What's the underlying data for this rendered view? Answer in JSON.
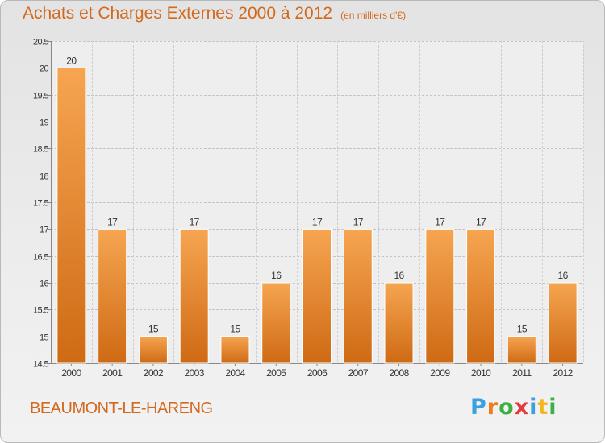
{
  "title": "Achats et Charges Externes 2000 à 2012",
  "unit": "(en milliers d'€)",
  "commune": "BEAUMONT-LE-HARENG",
  "logo": {
    "letters": [
      "P",
      "r",
      "o",
      "x",
      "i",
      "t",
      "i"
    ],
    "colors": [
      "#3aa0e0",
      "#f07b1e",
      "#3cb043",
      "#e23b3b",
      "#3aa0e0",
      "#f0b81e",
      "#3cb043"
    ]
  },
  "colors": {
    "bar": "#e8832e",
    "text": "#d2691e"
  },
  "chart_data": {
    "type": "bar",
    "categories": [
      "2000",
      "2001",
      "2002",
      "2003",
      "2004",
      "2005",
      "2006",
      "2007",
      "2008",
      "2009",
      "2010",
      "2011",
      "2012"
    ],
    "values": [
      20,
      17,
      15,
      17,
      15,
      16,
      17,
      17,
      16,
      17,
      17,
      15,
      16
    ],
    "data_labels": [
      "20",
      "17",
      "15",
      "17",
      "15",
      "16",
      "17",
      "17",
      "16",
      "17",
      "17",
      "15",
      "16"
    ],
    "ylim": [
      14.5,
      20.5
    ],
    "yticks": [
      "14.5",
      "15",
      "15.5",
      "16",
      "16.5",
      "17",
      "17.5",
      "18",
      "18.5",
      "19",
      "19.5",
      "20",
      "20.5"
    ],
    "grid": true
  }
}
